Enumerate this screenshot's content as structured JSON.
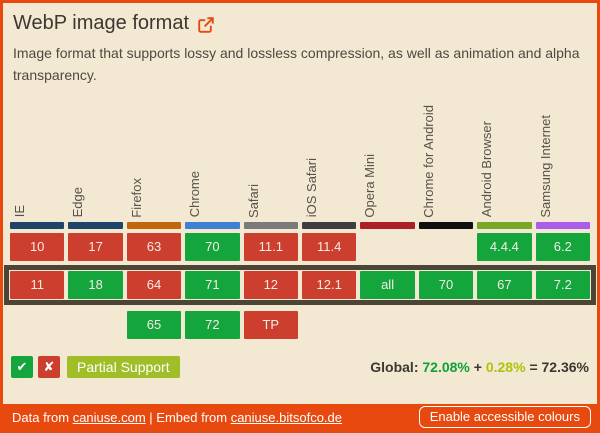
{
  "colors": {
    "accent_orange": "#E8490F",
    "background_cream": "#F3E8D2",
    "supported_green": "#14A53C",
    "unsupported_red": "#CC3E2E",
    "partial_yellow_green": "#9FBE27",
    "current_row_border": "#4C4536",
    "global_supported_text": "#0DA136",
    "global_partial_text": "#AEC20B"
  },
  "header": {
    "title": "WebP image format",
    "description": "Image format that supports lossy and lossless compression, as well as animation and alpha transparency."
  },
  "table": {
    "browsers": [
      {
        "name": "IE",
        "color": "#1E4569"
      },
      {
        "name": "Edge",
        "color": "#1E4569"
      },
      {
        "name": "Firefox",
        "color": "#C1660C"
      },
      {
        "name": "Chrome",
        "color": "#3E80D2"
      },
      {
        "name": "Safari",
        "color": "#7A7A7A"
      },
      {
        "name": "iOS Safari",
        "color": "#3E3E3E"
      },
      {
        "name": "Opera Mini",
        "color": "#AD2025"
      },
      {
        "name": "Chrome for Android",
        "color": "#0F0F0F"
      },
      {
        "name": "Android Browser",
        "color": "#79A829"
      },
      {
        "name": "Samsung Internet",
        "color": "#AB5CE8"
      }
    ],
    "rows": [
      {
        "era": "past",
        "cells": [
          {
            "version": "10",
            "support": "n"
          },
          {
            "version": "17",
            "support": "n"
          },
          {
            "version": "63",
            "support": "n"
          },
          {
            "version": "70",
            "support": "y"
          },
          {
            "version": "11.1",
            "support": "n"
          },
          {
            "version": "11.4",
            "support": "n"
          },
          {
            "version": "",
            "support": "none"
          },
          {
            "version": "",
            "support": "none"
          },
          {
            "version": "4.4.4",
            "support": "y"
          },
          {
            "version": "6.2",
            "support": "y"
          }
        ]
      },
      {
        "era": "current",
        "cells": [
          {
            "version": "11",
            "support": "n"
          },
          {
            "version": "18",
            "support": "y"
          },
          {
            "version": "64",
            "support": "n"
          },
          {
            "version": "71",
            "support": "y"
          },
          {
            "version": "12",
            "support": "n"
          },
          {
            "version": "12.1",
            "support": "n"
          },
          {
            "version": "all",
            "support": "y"
          },
          {
            "version": "70",
            "support": "y"
          },
          {
            "version": "67",
            "support": "y"
          },
          {
            "version": "7.2",
            "support": "y"
          }
        ]
      },
      {
        "era": "future",
        "cells": [
          {
            "version": "",
            "support": "none"
          },
          {
            "version": "",
            "support": "none"
          },
          {
            "version": "65",
            "support": "y"
          },
          {
            "version": "72",
            "support": "y"
          },
          {
            "version": "TP",
            "support": "n"
          },
          {
            "version": "",
            "support": "none"
          },
          {
            "version": "",
            "support": "none"
          },
          {
            "version": "",
            "support": "none"
          },
          {
            "version": "",
            "support": "none"
          },
          {
            "version": "",
            "support": "none"
          }
        ]
      }
    ]
  },
  "legend": {
    "check_icon": "✔",
    "cross_icon": "✘",
    "partial_label": "Partial Support"
  },
  "global_usage": {
    "label": "Global:",
    "supported_pct": "72.08%",
    "plus": "+",
    "partial_pct": "0.28%",
    "total": "= 72.36%"
  },
  "footer": {
    "data_from_prefix": "Data from ",
    "data_link": "caniuse.com",
    "separator": " | ",
    "embed_from_prefix": "Embed from ",
    "embed_link": "caniuse.bitsofco.de",
    "accessible_button": "Enable accessible colours"
  }
}
